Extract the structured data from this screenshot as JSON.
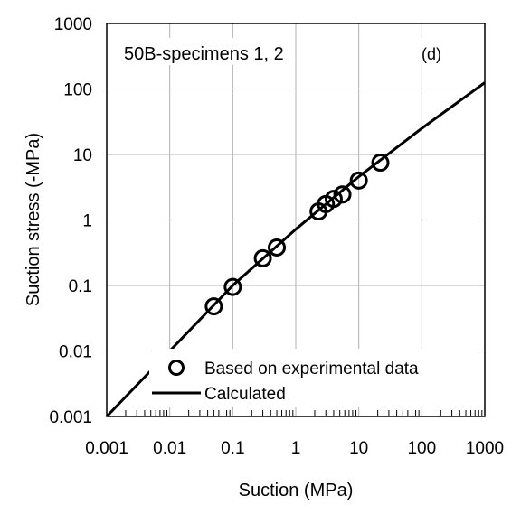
{
  "chart_data": {
    "type": "scatter",
    "title": "",
    "xlabel": "Suction (MPa)",
    "ylabel": "Suction stress (-MPa)",
    "xscale": "log",
    "yscale": "log",
    "xlim": [
      0.001,
      1000
    ],
    "ylim": [
      0.001,
      1000
    ],
    "x_ticks": [
      "0.001",
      "0.01",
      "0.1",
      "1",
      "10",
      "100",
      "1000"
    ],
    "y_ticks": [
      "0.001",
      "0.01",
      "0.1",
      "1",
      "10",
      "100",
      "1000"
    ],
    "grid": true,
    "legend_position": "bottom",
    "annotations": {
      "specimen": "50B-specimens 1, 2",
      "panel": "(d)"
    },
    "series": [
      {
        "name": "Based on experimental data",
        "marker": "open-circle",
        "x": [
          0.05,
          0.1,
          0.3,
          0.5,
          2.3,
          3.0,
          4.0,
          5.5,
          10,
          22
        ],
        "y": [
          0.048,
          0.095,
          0.26,
          0.38,
          1.35,
          1.75,
          2.1,
          2.45,
          4.0,
          7.5
        ]
      },
      {
        "name": "Calculated",
        "line": "solid",
        "x": [
          0.001,
          0.01,
          0.1,
          1,
          10,
          100,
          1000
        ],
        "y": [
          0.001,
          0.01,
          0.1,
          0.72,
          4.6,
          25,
          125
        ]
      }
    ]
  }
}
